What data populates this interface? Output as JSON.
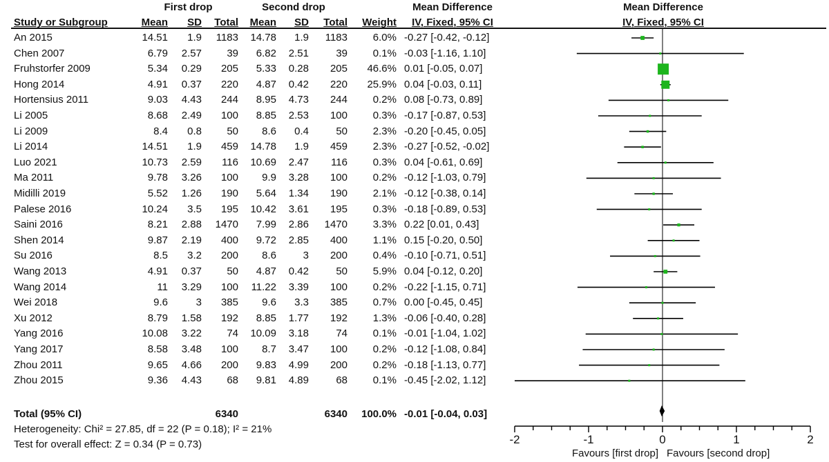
{
  "header": {
    "group1": "First drop",
    "group2": "Second drop",
    "md_title": "Mean Difference",
    "md_method": "IV, Fixed, 95% CI",
    "plot_title": "Mean Difference",
    "plot_method": "IV, Fixed, 95% CI",
    "col_study": "Study or Subgroup",
    "col_mean1": "Mean",
    "col_sd1": "SD",
    "col_total1": "Total",
    "col_mean2": "Mean",
    "col_sd2": "SD",
    "col_total2": "Total",
    "col_weight": "Weight"
  },
  "studies": [
    {
      "name": "An 2015",
      "m1": "14.51",
      "sd1": "1.9",
      "n1": "1183",
      "m2": "14.78",
      "sd2": "1.9",
      "n2": "1183",
      "weight": "6.0%",
      "ci": "-0.27 [-0.42, -0.12]"
    },
    {
      "name": "Chen 2007",
      "m1": "6.79",
      "sd1": "2.57",
      "n1": "39",
      "m2": "6.82",
      "sd2": "2.51",
      "n2": "39",
      "weight": "0.1%",
      "ci": "-0.03 [-1.16, 1.10]"
    },
    {
      "name": "Fruhstorfer 2009",
      "m1": "5.34",
      "sd1": "0.29",
      "n1": "205",
      "m2": "5.33",
      "sd2": "0.28",
      "n2": "205",
      "weight": "46.6%",
      "ci": "0.01 [-0.05, 0.07]"
    },
    {
      "name": "Hong 2014",
      "m1": "4.91",
      "sd1": "0.37",
      "n1": "220",
      "m2": "4.87",
      "sd2": "0.42",
      "n2": "220",
      "weight": "25.9%",
      "ci": "0.04 [-0.03, 0.11]"
    },
    {
      "name": "Hortensius 2011",
      "m1": "9.03",
      "sd1": "4.43",
      "n1": "244",
      "m2": "8.95",
      "sd2": "4.73",
      "n2": "244",
      "weight": "0.2%",
      "ci": "0.08 [-0.73, 0.89]"
    },
    {
      "name": "Li 2005",
      "m1": "8.68",
      "sd1": "2.49",
      "n1": "100",
      "m2": "8.85",
      "sd2": "2.53",
      "n2": "100",
      "weight": "0.3%",
      "ci": "-0.17 [-0.87, 0.53]"
    },
    {
      "name": "Li 2009",
      "m1": "8.4",
      "sd1": "0.8",
      "n1": "50",
      "m2": "8.6",
      "sd2": "0.4",
      "n2": "50",
      "weight": "2.3%",
      "ci": "-0.20 [-0.45, 0.05]"
    },
    {
      "name": "Li 2014",
      "m1": "14.51",
      "sd1": "1.9",
      "n1": "459",
      "m2": "14.78",
      "sd2": "1.9",
      "n2": "459",
      "weight": "2.3%",
      "ci": "-0.27 [-0.52, -0.02]"
    },
    {
      "name": "Luo 2021",
      "m1": "10.73",
      "sd1": "2.59",
      "n1": "116",
      "m2": "10.69",
      "sd2": "2.47",
      "n2": "116",
      "weight": "0.3%",
      "ci": "0.04 [-0.61, 0.69]"
    },
    {
      "name": "Ma 2011",
      "m1": "9.78",
      "sd1": "3.26",
      "n1": "100",
      "m2": "9.9",
      "sd2": "3.28",
      "n2": "100",
      "weight": "0.2%",
      "ci": "-0.12 [-1.03, 0.79]"
    },
    {
      "name": "Midilli 2019",
      "m1": "5.52",
      "sd1": "1.26",
      "n1": "190",
      "m2": "5.64",
      "sd2": "1.34",
      "n2": "190",
      "weight": "2.1%",
      "ci": "-0.12 [-0.38, 0.14]"
    },
    {
      "name": "Palese 2016",
      "m1": "10.24",
      "sd1": "3.5",
      "n1": "195",
      "m2": "10.42",
      "sd2": "3.61",
      "n2": "195",
      "weight": "0.3%",
      "ci": "-0.18 [-0.89, 0.53]"
    },
    {
      "name": "Saini 2016",
      "m1": "8.21",
      "sd1": "2.88",
      "n1": "1470",
      "m2": "7.99",
      "sd2": "2.86",
      "n2": "1470",
      "weight": "3.3%",
      "ci": "0.22 [0.01, 0.43]"
    },
    {
      "name": "Shen 2014",
      "m1": "9.87",
      "sd1": "2.19",
      "n1": "400",
      "m2": "9.72",
      "sd2": "2.85",
      "n2": "400",
      "weight": "1.1%",
      "ci": "0.15 [-0.20, 0.50]"
    },
    {
      "name": "Su 2016",
      "m1": "8.5",
      "sd1": "3.2",
      "n1": "200",
      "m2": "8.6",
      "sd2": "3",
      "n2": "200",
      "weight": "0.4%",
      "ci": "-0.10 [-0.71, 0.51]"
    },
    {
      "name": "Wang 2013",
      "m1": "4.91",
      "sd1": "0.37",
      "n1": "50",
      "m2": "4.87",
      "sd2": "0.42",
      "n2": "50",
      "weight": "5.9%",
      "ci": "0.04 [-0.12, 0.20]"
    },
    {
      "name": "Wang 2014",
      "m1": "11",
      "sd1": "3.29",
      "n1": "100",
      "m2": "11.22",
      "sd2": "3.39",
      "n2": "100",
      "weight": "0.2%",
      "ci": "-0.22 [-1.15, 0.71]"
    },
    {
      "name": "Wei 2018",
      "m1": "9.6",
      "sd1": "3",
      "n1": "385",
      "m2": "9.6",
      "sd2": "3.3",
      "n2": "385",
      "weight": "0.7%",
      "ci": "0.00 [-0.45, 0.45]"
    },
    {
      "name": "Xu 2012",
      "m1": "8.79",
      "sd1": "1.58",
      "n1": "192",
      "m2": "8.85",
      "sd2": "1.77",
      "n2": "192",
      "weight": "1.3%",
      "ci": "-0.06 [-0.40, 0.28]"
    },
    {
      "name": "Yang 2016",
      "m1": "10.08",
      "sd1": "3.22",
      "n1": "74",
      "m2": "10.09",
      "sd2": "3.18",
      "n2": "74",
      "weight": "0.1%",
      "ci": "-0.01 [-1.04, 1.02]"
    },
    {
      "name": "Yang 2017",
      "m1": "8.58",
      "sd1": "3.48",
      "n1": "100",
      "m2": "8.7",
      "sd2": "3.47",
      "n2": "100",
      "weight": "0.2%",
      "ci": "-0.12 [-1.08, 0.84]"
    },
    {
      "name": "Zhou 2011",
      "m1": "9.65",
      "sd1": "4.66",
      "n1": "200",
      "m2": "9.83",
      "sd2": "4.99",
      "n2": "200",
      "weight": "0.2%",
      "ci": "-0.18 [-1.13, 0.77]"
    },
    {
      "name": "Zhou 2015",
      "m1": "9.36",
      "sd1": "4.43",
      "n1": "68",
      "m2": "9.81",
      "sd2": "4.89",
      "n2": "68",
      "weight": "0.1%",
      "ci": "-0.45 [-2.02, 1.12]"
    }
  ],
  "total": {
    "label": "Total (95% CI)",
    "n1": "6340",
    "n2": "6340",
    "weight": "100.0%",
    "ci": "-0.01 [-0.04, 0.03]"
  },
  "heterogeneity": "Heterogeneity: Chi² = 27.85, df = 22 (P = 0.18); I² = 21%",
  "overall_effect": "Test for overall effect: Z = 0.34 (P = 0.73)",
  "axis": {
    "ticks": [
      "-2",
      "-1",
      "0",
      "1",
      "2"
    ],
    "favours_left": "Favours [first drop]",
    "favours_right": "Favours [second drop]"
  },
  "colors": {
    "marker": "#1db51d",
    "line": "#000000",
    "diamond": "#000000"
  },
  "chart_data": {
    "type": "forest",
    "xlim": [
      -2,
      2
    ],
    "xticks": [
      -2,
      -1,
      0,
      1,
      2
    ],
    "points": [
      {
        "study": "An 2015",
        "md": -0.27,
        "lo": -0.42,
        "hi": -0.12,
        "weight": 6.0
      },
      {
        "study": "Chen 2007",
        "md": -0.03,
        "lo": -1.16,
        "hi": 1.1,
        "weight": 0.1
      },
      {
        "study": "Fruhstorfer 2009",
        "md": 0.01,
        "lo": -0.05,
        "hi": 0.07,
        "weight": 46.6
      },
      {
        "study": "Hong 2014",
        "md": 0.04,
        "lo": -0.03,
        "hi": 0.11,
        "weight": 25.9
      },
      {
        "study": "Hortensius 2011",
        "md": 0.08,
        "lo": -0.73,
        "hi": 0.89,
        "weight": 0.2
      },
      {
        "study": "Li 2005",
        "md": -0.17,
        "lo": -0.87,
        "hi": 0.53,
        "weight": 0.3
      },
      {
        "study": "Li 2009",
        "md": -0.2,
        "lo": -0.45,
        "hi": 0.05,
        "weight": 2.3
      },
      {
        "study": "Li 2014",
        "md": -0.27,
        "lo": -0.52,
        "hi": -0.02,
        "weight": 2.3
      },
      {
        "study": "Luo 2021",
        "md": 0.04,
        "lo": -0.61,
        "hi": 0.69,
        "weight": 0.3
      },
      {
        "study": "Ma 2011",
        "md": -0.12,
        "lo": -1.03,
        "hi": 0.79,
        "weight": 0.2
      },
      {
        "study": "Midilli 2019",
        "md": -0.12,
        "lo": -0.38,
        "hi": 0.14,
        "weight": 2.1
      },
      {
        "study": "Palese 2016",
        "md": -0.18,
        "lo": -0.89,
        "hi": 0.53,
        "weight": 0.3
      },
      {
        "study": "Saini 2016",
        "md": 0.22,
        "lo": 0.01,
        "hi": 0.43,
        "weight": 3.3
      },
      {
        "study": "Shen 2014",
        "md": 0.15,
        "lo": -0.2,
        "hi": 0.5,
        "weight": 1.1
      },
      {
        "study": "Su 2016",
        "md": -0.1,
        "lo": -0.71,
        "hi": 0.51,
        "weight": 0.4
      },
      {
        "study": "Wang 2013",
        "md": 0.04,
        "lo": -0.12,
        "hi": 0.2,
        "weight": 5.9
      },
      {
        "study": "Wang 2014",
        "md": -0.22,
        "lo": -1.15,
        "hi": 0.71,
        "weight": 0.2
      },
      {
        "study": "Wei 2018",
        "md": 0.0,
        "lo": -0.45,
        "hi": 0.45,
        "weight": 0.7
      },
      {
        "study": "Xu 2012",
        "md": -0.06,
        "lo": -0.4,
        "hi": 0.28,
        "weight": 1.3
      },
      {
        "study": "Yang 2016",
        "md": -0.01,
        "lo": -1.04,
        "hi": 1.02,
        "weight": 0.1
      },
      {
        "study": "Yang 2017",
        "md": -0.12,
        "lo": -1.08,
        "hi": 0.84,
        "weight": 0.2
      },
      {
        "study": "Zhou 2011",
        "md": -0.18,
        "lo": -1.13,
        "hi": 0.77,
        "weight": 0.2
      },
      {
        "study": "Zhou 2015",
        "md": -0.45,
        "lo": -2.02,
        "hi": 1.12,
        "weight": 0.1
      }
    ],
    "pooled": {
      "md": -0.01,
      "lo": -0.04,
      "hi": 0.03
    }
  }
}
